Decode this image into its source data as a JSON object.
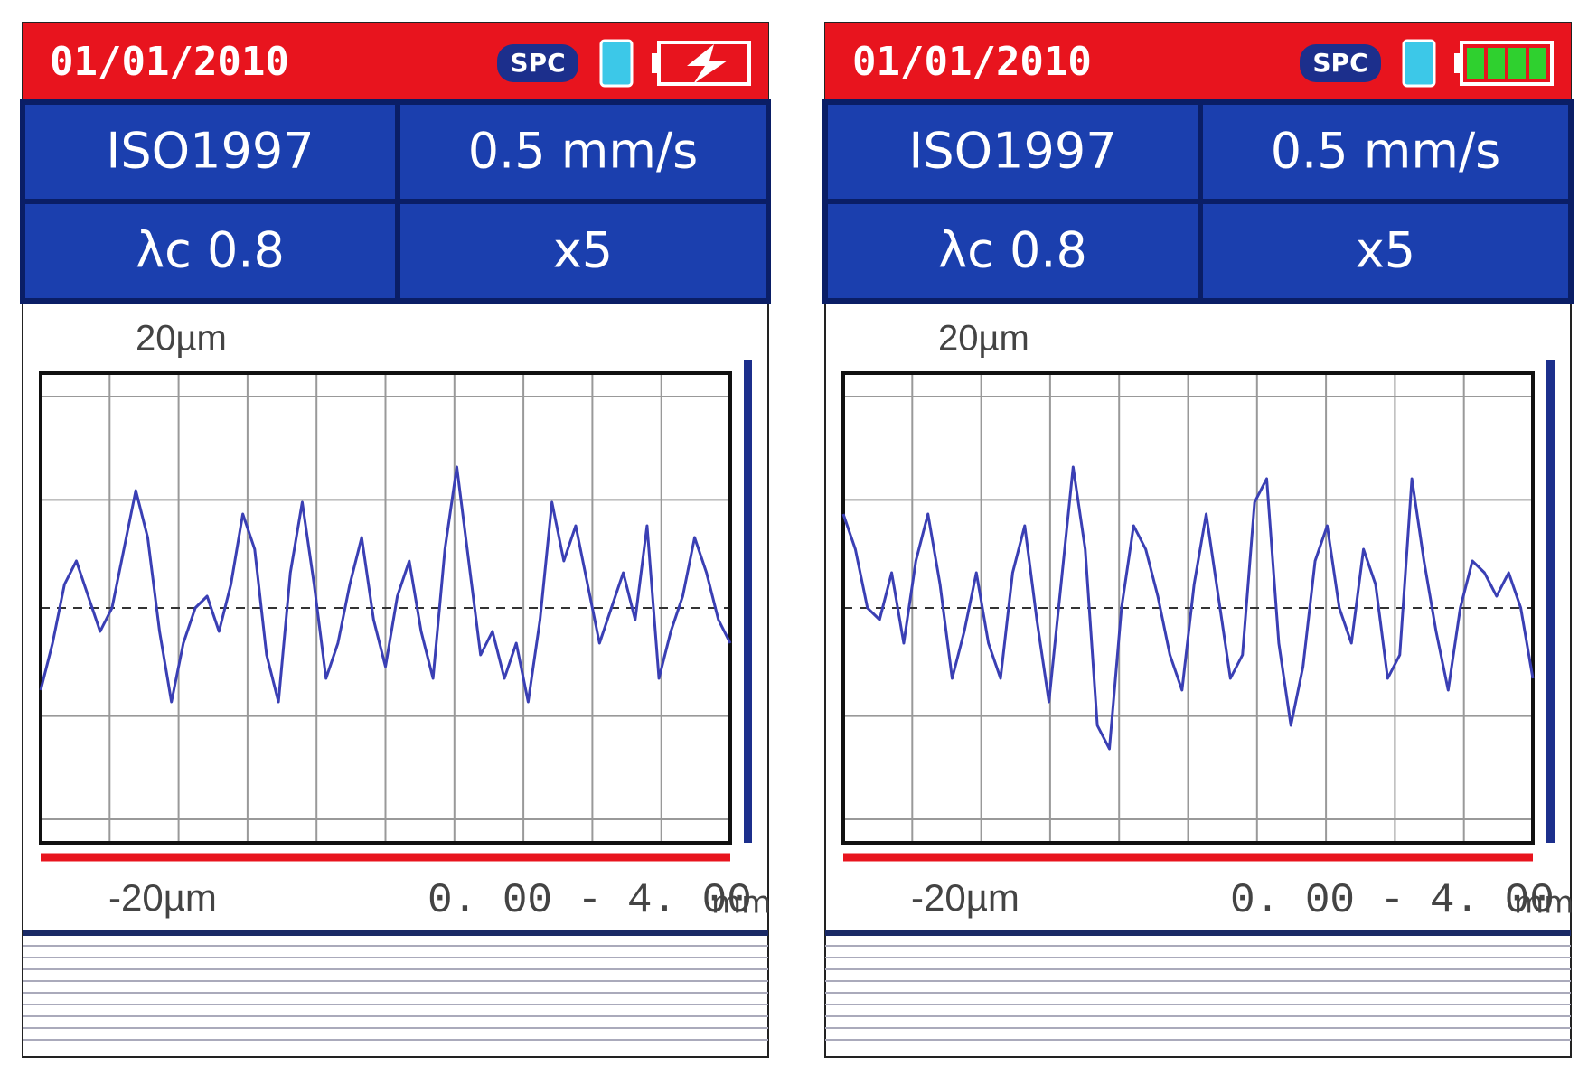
{
  "screens": [
    {
      "status_bar": {
        "date": "01/01/2010",
        "badge": "SPC",
        "battery": "charging"
      },
      "info": [
        [
          "ISO1997",
          "0.5 mm/s"
        ],
        [
          "λc 0.8",
          "x5"
        ]
      ],
      "profile": {
        "top_label": "20µm",
        "bottom_label": "-20µm",
        "range": "0. 00 - 4. 00",
        "range_unit": "mm",
        "ylim": [
          -20,
          20
        ],
        "values": [
          -7,
          -3,
          2,
          4,
          1,
          -2,
          0,
          5,
          10,
          6,
          -2,
          -8,
          -3,
          0,
          1,
          -2,
          2,
          8,
          5,
          -4,
          -8,
          3,
          9,
          2,
          -6,
          -3,
          2,
          6,
          -1,
          -5,
          1,
          4,
          -2,
          -6,
          5,
          12,
          4,
          -4,
          -2,
          -6,
          -3,
          -8,
          -1,
          9,
          4,
          7,
          2,
          -3,
          0,
          3,
          -1,
          7,
          -6,
          -2,
          1,
          6,
          3,
          -1,
          -3
        ]
      }
    },
    {
      "status_bar": {
        "date": "01/01/2010",
        "badge": "SPC",
        "battery": "full"
      },
      "info": [
        [
          "ISO1997",
          "0.5 mm/s"
        ],
        [
          "λc 0.8",
          "x5"
        ]
      ],
      "profile": {
        "top_label": "20µm",
        "bottom_label": "-20µm",
        "range": "0. 00 - 4. 00",
        "range_unit": "mm",
        "ylim": [
          -20,
          20
        ],
        "values": [
          8,
          5,
          0,
          -1,
          3,
          -3,
          4,
          8,
          2,
          -6,
          -2,
          3,
          -3,
          -6,
          3,
          7,
          -1,
          -8,
          2,
          12,
          5,
          -10,
          -12,
          0,
          7,
          5,
          1,
          -4,
          -7,
          2,
          8,
          1,
          -6,
          -4,
          9,
          11,
          -3,
          -10,
          -5,
          4,
          7,
          0,
          -3,
          5,
          2,
          -6,
          -4,
          11,
          4,
          -2,
          -7,
          0,
          4,
          3,
          1,
          3,
          0,
          -6
        ]
      }
    }
  ]
}
